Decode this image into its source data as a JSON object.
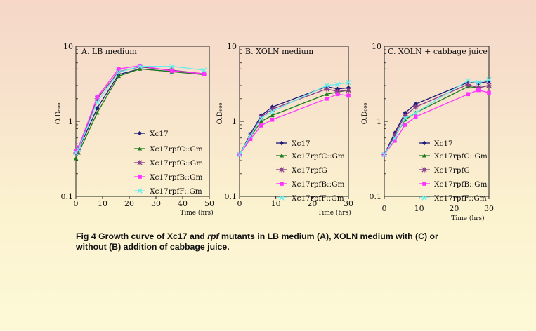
{
  "caption": {
    "before": "Fig 4 Growth curve of Xc17 and ",
    "italic": "rpf",
    "after": " mutants in LB medium (A), XOLN medium with (C) or without (B) addition of cabbage juice."
  },
  "colors": {
    "Xc17": "#1a1a7a",
    "Xc17rpfC::Gm": "#1e7a1e",
    "Xc17rpfG::Gm": "#8a3a8a",
    "Xc17rpfG": "#8a3a8a",
    "Xc17rpfB::Gm": "#ff33ff",
    "Xc17rpfF::Gm": "#66eeee"
  },
  "chart_data": [
    {
      "type": "line",
      "title": "A. LB medium",
      "xlabel": "Time (hrs)",
      "ylabel": "O.D₆₀₀",
      "yscale": "log",
      "xlim": [
        0,
        50
      ],
      "ylim": [
        0.1,
        10
      ],
      "xticks": [
        0,
        10,
        20,
        30,
        40,
        50
      ],
      "yticks": [
        0.1,
        1,
        10
      ],
      "yticklabels": [
        "0.1",
        "1",
        "10"
      ],
      "x": [
        0,
        1,
        8,
        16,
        24,
        36,
        48
      ],
      "series": [
        {
          "name": "Xc17",
          "marker": "diamond",
          "values": [
            0.38,
            0.42,
            1.5,
            4.2,
            5.0,
            4.6,
            4.2
          ]
        },
        {
          "name": "Xc17rpfC::Gm",
          "marker": "triangle",
          "values": [
            0.32,
            0.38,
            1.3,
            4.0,
            5.0,
            4.6,
            4.2
          ]
        },
        {
          "name": "Xc17rpfG::Gm",
          "marker": "star",
          "values": [
            0.38,
            0.42,
            2.0,
            4.6,
            5.3,
            4.8,
            4.3
          ]
        },
        {
          "name": "Xc17rpfB::Gm",
          "marker": "square",
          "values": [
            0.4,
            0.45,
            2.1,
            5.0,
            5.5,
            4.7,
            4.3
          ]
        },
        {
          "name": "Xc17rpfF::Gm",
          "marker": "x",
          "values": [
            0.38,
            0.42,
            1.8,
            4.5,
            5.4,
            5.4,
            4.8
          ]
        }
      ]
    },
    {
      "type": "line",
      "title": "B. XOLN medium",
      "xlabel": "Time (hrs)",
      "ylabel": "O.D₆₀₀",
      "yscale": "log",
      "xlim": [
        0,
        30
      ],
      "ylim": [
        0.1,
        10
      ],
      "xticks": [
        0,
        10,
        20,
        30
      ],
      "yticks": [
        0.1,
        1,
        10
      ],
      "yticklabels": [
        "0.1",
        "1",
        "10"
      ],
      "x": [
        0,
        3,
        6,
        9,
        24,
        27,
        30
      ],
      "series": [
        {
          "name": "Xc17",
          "marker": "diamond",
          "values": [
            0.36,
            0.68,
            1.2,
            1.55,
            2.9,
            2.7,
            2.8
          ]
        },
        {
          "name": "Xc17rpfC::Gm",
          "marker": "triangle",
          "values": [
            0.36,
            0.62,
            1.0,
            1.2,
            2.3,
            2.45,
            2.6
          ]
        },
        {
          "name": "Xc17rpfG",
          "marker": "star",
          "values": [
            0.36,
            0.66,
            1.15,
            1.45,
            2.7,
            2.5,
            2.6
          ]
        },
        {
          "name": "Xc17rpfB::Gm",
          "marker": "square",
          "values": [
            0.36,
            0.58,
            0.88,
            1.05,
            2.0,
            2.3,
            2.2
          ]
        },
        {
          "name": "Xc17rpfF::Gm",
          "marker": "x",
          "values": [
            0.36,
            0.64,
            1.1,
            1.35,
            3.0,
            3.1,
            3.3
          ]
        }
      ]
    },
    {
      "type": "line",
      "title": "C. XOLN + cabbage juice",
      "xlabel": "Time (hrs)",
      "ylabel": "O.D₆₀₀",
      "yscale": "log",
      "xlim": [
        0,
        30
      ],
      "ylim": [
        0.1,
        10
      ],
      "xticks": [
        0,
        10,
        20,
        30
      ],
      "yticks": [
        0.1,
        1,
        10
      ],
      "yticklabels": [
        "0.1",
        "1",
        "10"
      ],
      "x": [
        0,
        3,
        6,
        9,
        24,
        27,
        30
      ],
      "series": [
        {
          "name": "Xc17",
          "marker": "diamond",
          "values": [
            0.36,
            0.7,
            1.3,
            1.7,
            3.3,
            3.2,
            3.4
          ]
        },
        {
          "name": "Xc17rpfC::Gm",
          "marker": "triangle",
          "values": [
            0.36,
            0.62,
            1.05,
            1.3,
            2.9,
            2.8,
            3.0
          ]
        },
        {
          "name": "Xc17rpfG",
          "marker": "star",
          "values": [
            0.36,
            0.66,
            1.2,
            1.55,
            3.1,
            2.8,
            3.0
          ]
        },
        {
          "name": "Xc17rpfB::Gm",
          "marker": "square",
          "values": [
            0.36,
            0.55,
            0.9,
            1.15,
            2.3,
            2.6,
            2.4
          ]
        },
        {
          "name": "Xc17rpfF::Gm",
          "marker": "x",
          "values": [
            0.36,
            0.6,
            1.1,
            1.3,
            3.5,
            3.3,
            3.6
          ]
        }
      ]
    }
  ]
}
